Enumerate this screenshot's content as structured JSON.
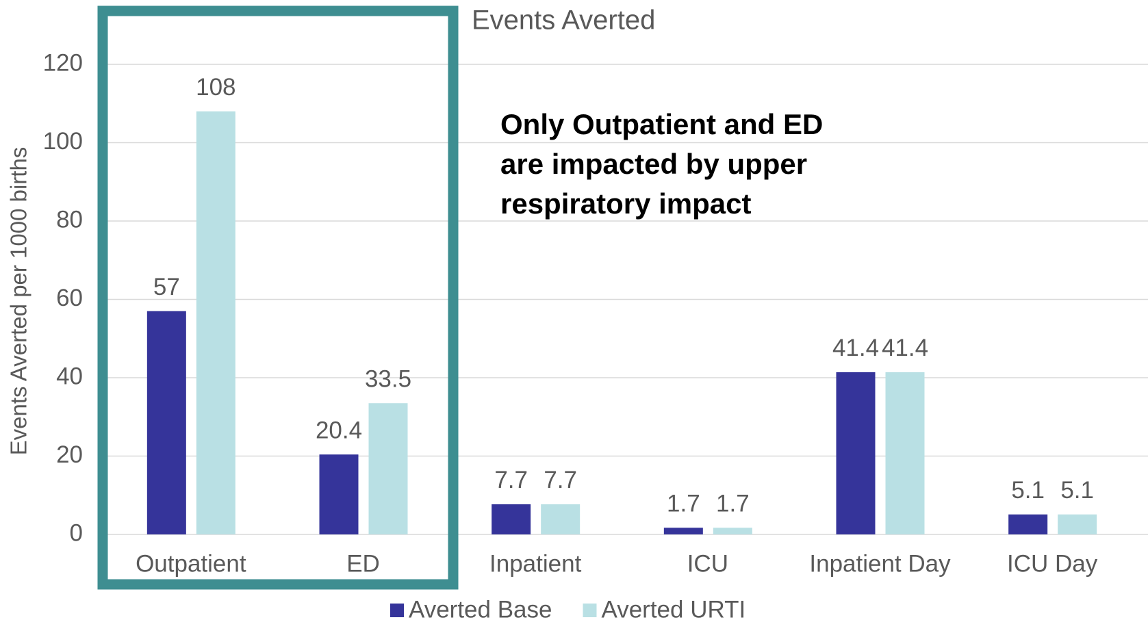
{
  "chart_data": {
    "type": "bar",
    "title": "Events Averted",
    "y_label": "Events Averted per 1000 births",
    "annotation": [
      "Only Outpatient and ED",
      "are impacted by upper",
      "respiratory impact"
    ],
    "categories": [
      "Outpatient",
      "ED",
      "Inpatient",
      "ICU",
      "Inpatient Day",
      "ICU Day"
    ],
    "series": [
      {
        "name": "Averted Base",
        "color": "#35349a",
        "values": [
          57,
          20.4,
          7.7,
          1.7,
          41.4,
          5.1
        ]
      },
      {
        "name": "Averted URTI",
        "color": "#b9e0e4",
        "values": [
          108,
          33.5,
          7.7,
          1.7,
          41.4,
          5.1
        ]
      }
    ],
    "ylim": [
      0,
      120
    ],
    "yticks": [
      0,
      20,
      40,
      60,
      80,
      100,
      120
    ],
    "grid": true,
    "legend": "bottom"
  }
}
